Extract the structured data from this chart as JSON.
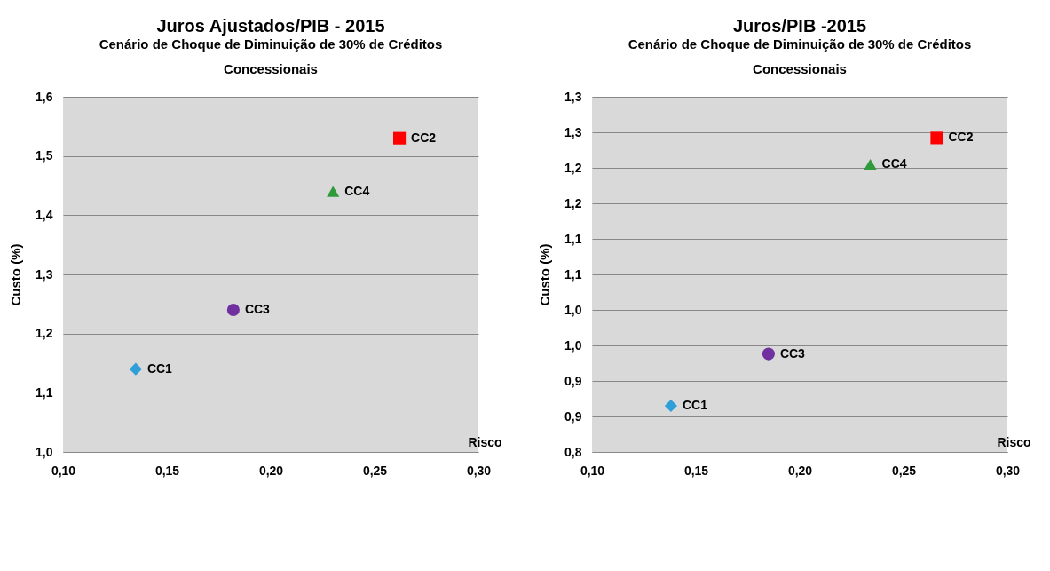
{
  "chart_data": [
    {
      "type": "scatter",
      "title": "Juros Ajustados/PIB - 2015",
      "subtitle": "Cenário de Choque de Diminuição de 30% de Créditos Concessionais",
      "xlabel": "Risco",
      "ylabel": "Custo (%)",
      "xlim": [
        0.1,
        0.3
      ],
      "xticks": [
        {
          "value": 0.1,
          "label": "0,10"
        },
        {
          "value": 0.15,
          "label": "0,15"
        },
        {
          "value": 0.2,
          "label": "0,20"
        },
        {
          "value": 0.25,
          "label": "0,25"
        },
        {
          "value": 0.3,
          "label": "0,30"
        }
      ],
      "ylim": [
        1.0,
        1.6
      ],
      "yticks": [
        {
          "value": 1.0,
          "label": "1,0"
        },
        {
          "value": 1.1,
          "label": "1,1"
        },
        {
          "value": 1.2,
          "label": "1,2"
        },
        {
          "value": 1.3,
          "label": "1,3"
        },
        {
          "value": 1.4,
          "label": "1,4"
        },
        {
          "value": 1.5,
          "label": "1,5"
        },
        {
          "value": 1.6,
          "label": "1,6"
        }
      ],
      "grid": "y",
      "series": [
        {
          "name": "CC1",
          "color": "#2e9fd8",
          "marker": "diamond",
          "x": [
            0.135
          ],
          "values": [
            1.14
          ]
        },
        {
          "name": "CC2",
          "color": "#ff0000",
          "marker": "square",
          "x": [
            0.262
          ],
          "values": [
            1.53
          ]
        },
        {
          "name": "CC3",
          "color": "#7030a0",
          "marker": "circle",
          "x": [
            0.182
          ],
          "values": [
            1.24
          ]
        },
        {
          "name": "CC4",
          "color": "#2e9a3c",
          "marker": "triangle",
          "x": [
            0.23
          ],
          "values": [
            1.44
          ]
        }
      ]
    },
    {
      "type": "scatter",
      "title": "Juros/PIB -2015",
      "subtitle": "Cenário de Choque de Diminuição de 30% de Créditos Concessionais",
      "xlabel": "Risco",
      "ylabel": "Custo (%)",
      "xlim": [
        0.1,
        0.3
      ],
      "xticks": [
        {
          "value": 0.1,
          "label": "0,10"
        },
        {
          "value": 0.15,
          "label": "0,15"
        },
        {
          "value": 0.2,
          "label": "0,20"
        },
        {
          "value": 0.25,
          "label": "0,25"
        },
        {
          "value": 0.3,
          "label": "0,30"
        }
      ],
      "ylim": [
        0.8,
        1.3
      ],
      "yticks": [
        {
          "value": 0.8,
          "label": "0,8"
        },
        {
          "value": 0.85,
          "label": "0,9"
        },
        {
          "value": 0.9,
          "label": "0,9"
        },
        {
          "value": 0.95,
          "label": "1,0"
        },
        {
          "value": 1.0,
          "label": "1,0"
        },
        {
          "value": 1.05,
          "label": "1,1"
        },
        {
          "value": 1.1,
          "label": "1,1"
        },
        {
          "value": 1.15,
          "label": "1,2"
        },
        {
          "value": 1.2,
          "label": "1,2"
        },
        {
          "value": 1.25,
          "label": "1,3"
        },
        {
          "value": 1.3,
          "label": "1,3"
        }
      ],
      "grid": "y",
      "series": [
        {
          "name": "CC1",
          "color": "#2e9fd8",
          "marker": "diamond",
          "x": [
            0.138
          ],
          "values": [
            0.865
          ]
        },
        {
          "name": "CC2",
          "color": "#ff0000",
          "marker": "square",
          "x": [
            0.266
          ],
          "values": [
            1.242
          ]
        },
        {
          "name": "CC3",
          "color": "#7030a0",
          "marker": "circle",
          "x": [
            0.185
          ],
          "values": [
            0.938
          ]
        },
        {
          "name": "CC4",
          "color": "#2e9a3c",
          "marker": "triangle",
          "x": [
            0.234
          ],
          "values": [
            1.205
          ]
        }
      ]
    }
  ]
}
